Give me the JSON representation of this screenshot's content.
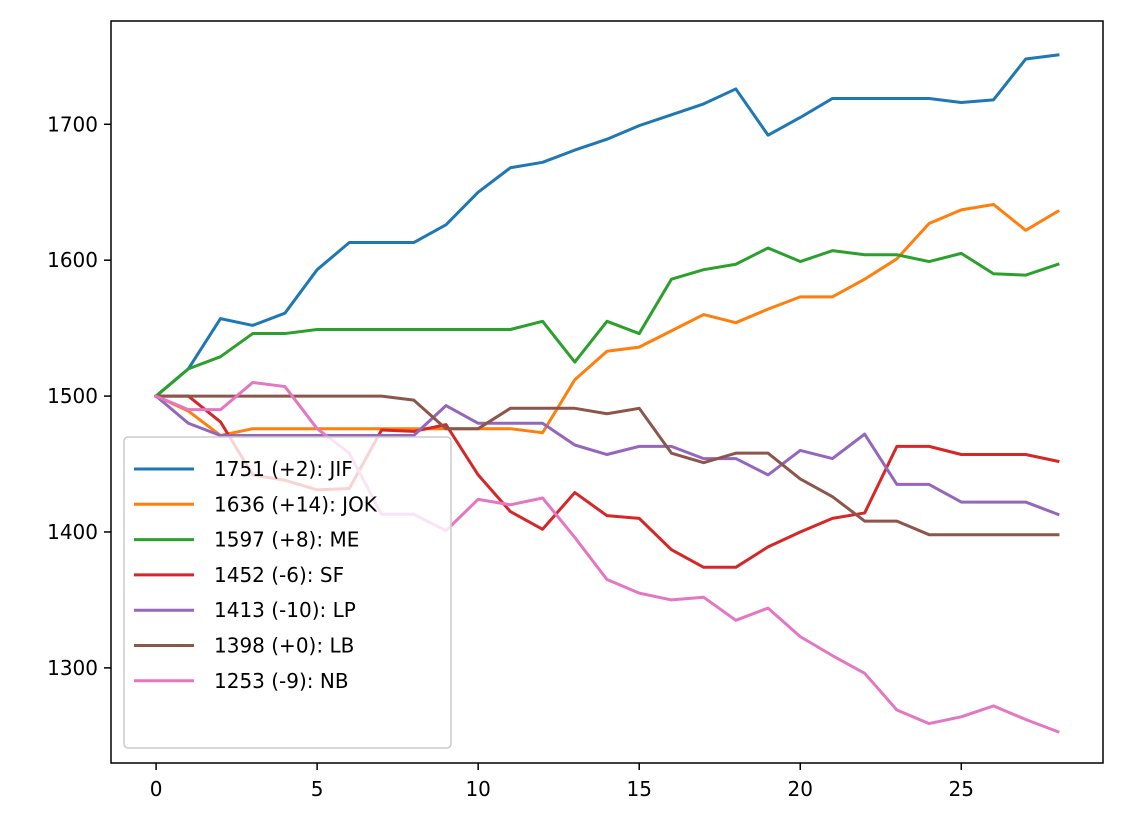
{
  "chart_data": {
    "type": "line",
    "title": "",
    "xlabel": "",
    "ylabel": "",
    "xlim": [
      -1.4,
      29.4
    ],
    "ylim": [
      1230,
      1776
    ],
    "xticks": [
      0,
      5,
      10,
      15,
      20,
      25
    ],
    "yticks": [
      1300,
      1400,
      1500,
      1600,
      1700
    ],
    "grid": false,
    "legend_position": "lower-left",
    "x": [
      0,
      1,
      2,
      3,
      4,
      5,
      6,
      7,
      8,
      9,
      10,
      11,
      12,
      13,
      14,
      15,
      16,
      17,
      18,
      19,
      20,
      21,
      22,
      23,
      24,
      25,
      26,
      27,
      28
    ],
    "series": [
      {
        "name": "1751 (+2): JIF",
        "color": "#1f77b4",
        "values": [
          1500,
          1520,
          1557,
          1552,
          1561,
          1593,
          1613,
          1613,
          1613,
          1626,
          1650,
          1668,
          1672,
          1681,
          1689,
          1699,
          1707,
          1715,
          1726,
          1692,
          1705,
          1719,
          1719,
          1719,
          1719,
          1716,
          1718,
          1748,
          1751
        ]
      },
      {
        "name": "1636 (+14): JOK",
        "color": "#ff7f0e",
        "values": [
          1500,
          1489,
          1471,
          1476,
          1476,
          1476,
          1476,
          1476,
          1476,
          1476,
          1476,
          1476,
          1473,
          1512,
          1533,
          1536,
          1548,
          1560,
          1554,
          1564,
          1573,
          1573,
          1586,
          1601,
          1627,
          1637,
          1641,
          1622,
          1636
        ]
      },
      {
        "name": "1597 (+8): ME",
        "color": "#2ca02c",
        "values": [
          1500,
          1520,
          1529,
          1546,
          1546,
          1549,
          1549,
          1549,
          1549,
          1549,
          1549,
          1549,
          1555,
          1525,
          1555,
          1546,
          1586,
          1593,
          1597,
          1609,
          1599,
          1607,
          1604,
          1604,
          1599,
          1605,
          1590,
          1589,
          1597
        ]
      },
      {
        "name": "1452 (-6): SF",
        "color": "#d62728",
        "values": [
          1500,
          1500,
          1481,
          1442,
          1438,
          1431,
          1432,
          1475,
          1474,
          1479,
          1442,
          1415,
          1402,
          1429,
          1412,
          1410,
          1387,
          1374,
          1374,
          1389,
          1400,
          1410,
          1414,
          1463,
          1463,
          1457,
          1457,
          1457,
          1452
        ]
      },
      {
        "name": "1413 (-10): LP",
        "color": "#9467bd",
        "values": [
          1500,
          1480,
          1471,
          1471,
          1471,
          1471,
          1471,
          1471,
          1471,
          1493,
          1480,
          1480,
          1480,
          1464,
          1457,
          1463,
          1463,
          1454,
          1454,
          1442,
          1460,
          1454,
          1472,
          1435,
          1435,
          1422,
          1422,
          1422,
          1413
        ]
      },
      {
        "name": "1398 (+0): LB",
        "color": "#8c564b",
        "values": [
          1500,
          1500,
          1500,
          1500,
          1500,
          1500,
          1500,
          1500,
          1497,
          1476,
          1476,
          1491,
          1491,
          1491,
          1487,
          1491,
          1458,
          1451,
          1458,
          1458,
          1439,
          1426,
          1408,
          1408,
          1398,
          1398,
          1398,
          1398,
          1398
        ]
      },
      {
        "name": "1253 (-9): NB",
        "color": "#e377c2",
        "values": [
          1500,
          1490,
          1490,
          1510,
          1507,
          1476,
          1458,
          1413,
          1413,
          1401,
          1424,
          1420,
          1425,
          1396,
          1365,
          1355,
          1350,
          1352,
          1335,
          1344,
          1323,
          1309,
          1296,
          1269,
          1259,
          1264,
          1272,
          1262,
          1253
        ]
      }
    ]
  }
}
